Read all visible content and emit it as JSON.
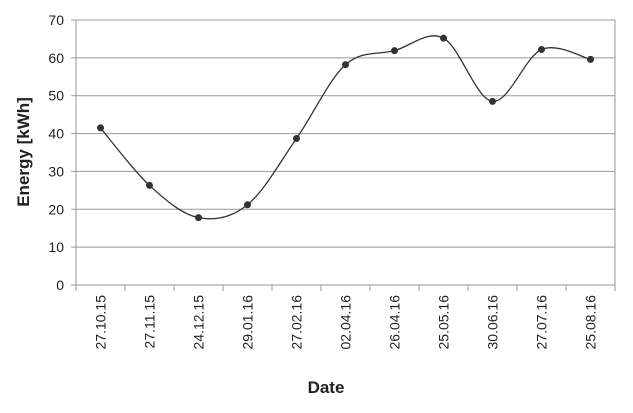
{
  "chart_data": {
    "type": "line",
    "x_label": "Date",
    "y_label": "Energy [kWh]",
    "categories": [
      "27.10.15",
      "27.11.15",
      "24.12.15",
      "29.01.16",
      "27.02.16",
      "02.04.16",
      "26.04.16",
      "25.05.16",
      "30.06.16",
      "27.07.16",
      "25.08.16"
    ],
    "values": [
      41.5,
      26.3,
      17.8,
      21.2,
      38.7,
      58.2,
      61.9,
      65.2,
      48.5,
      62.2,
      59.6
    ],
    "color": "#333333",
    "smooth": true,
    "ylim": [
      0,
      70
    ],
    "yticks": [
      0,
      10,
      20,
      30,
      40,
      50,
      60,
      70
    ],
    "grid": true
  }
}
